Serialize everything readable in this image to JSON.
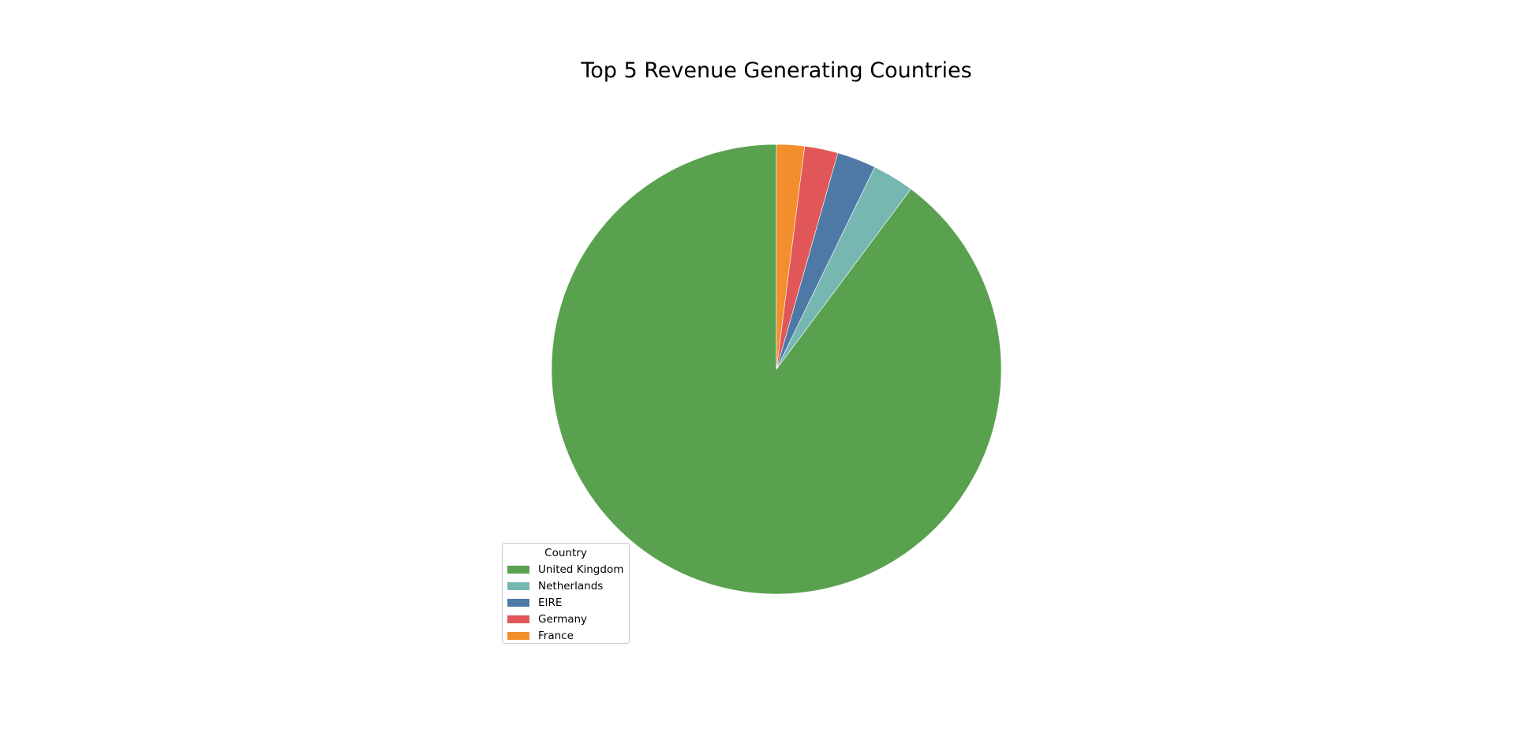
{
  "chart_data": {
    "type": "pie",
    "title": "Top 5 Revenue Generating Countries",
    "legend": {
      "title": "Country",
      "placement": "lower-left"
    },
    "start_angle_deg": 90,
    "direction": "counterclockwise",
    "slices": [
      {
        "label": "United Kingdom",
        "value": 89.8,
        "color": "#59a14f"
      },
      {
        "label": "Netherlands",
        "value": 3.0,
        "color": "#76b7b2"
      },
      {
        "label": "EIRE",
        "value": 2.8,
        "color": "#4e79a7"
      },
      {
        "label": "Germany",
        "value": 2.4,
        "color": "#e15759"
      },
      {
        "label": "France",
        "value": 2.0,
        "color": "#f28e2b"
      }
    ]
  }
}
